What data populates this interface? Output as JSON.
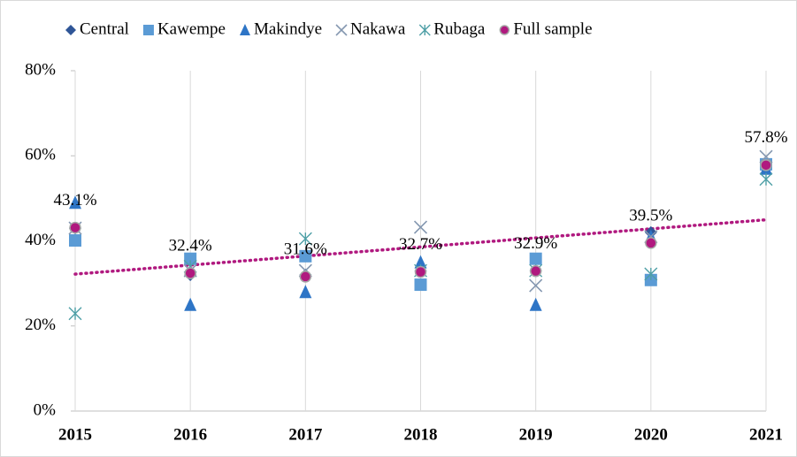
{
  "chart_data": {
    "type": "scatter",
    "categories": [
      "2015",
      "2016",
      "2017",
      "2018",
      "2019",
      "2020",
      "2021"
    ],
    "ylim": [
      0,
      80
    ],
    "yticks": [
      {
        "value": 0,
        "label": "0%"
      },
      {
        "value": 20,
        "label": "20%"
      },
      {
        "value": 40,
        "label": "40%"
      },
      {
        "value": 60,
        "label": "60%"
      },
      {
        "value": 80,
        "label": "80%"
      }
    ],
    "grid": "x",
    "legend": "top",
    "series": [
      {
        "name": "Central",
        "color": "#2f5597",
        "marker": "diamond",
        "values": [
          43,
          32,
          32,
          33,
          33,
          42,
          57
        ]
      },
      {
        "name": "Kawempe",
        "color": "#5b9bd5",
        "marker": "square",
        "values": [
          40.1,
          35.8,
          36.4,
          29.7,
          35.8,
          30.8,
          58
        ]
      },
      {
        "name": "Makindye",
        "color": "#2e75c6",
        "marker": "triangle",
        "values": [
          49,
          25,
          28,
          35,
          25,
          41,
          57
        ]
      },
      {
        "name": "Nakawa",
        "color": "#8497b0",
        "marker": "x",
        "values": [
          43,
          33,
          33,
          43.2,
          29.5,
          41,
          59.8
        ]
      },
      {
        "name": "Rubaga",
        "color": "#4e9fa6",
        "marker": "asterisk",
        "values": [
          22.9,
          34,
          40.5,
          33,
          33,
          32.2,
          54.5
        ]
      },
      {
        "name": "Full sample",
        "color": "#b0197f",
        "marker": "circle",
        "trendline": true,
        "values": [
          43.1,
          32.4,
          31.6,
          32.7,
          32.9,
          39.5,
          57.8
        ],
        "value_labels": [
          "43.1%",
          "32.4%",
          "31.6%",
          "32.7%",
          "32.9%",
          "39.5%",
          "57.8%"
        ]
      }
    ]
  }
}
